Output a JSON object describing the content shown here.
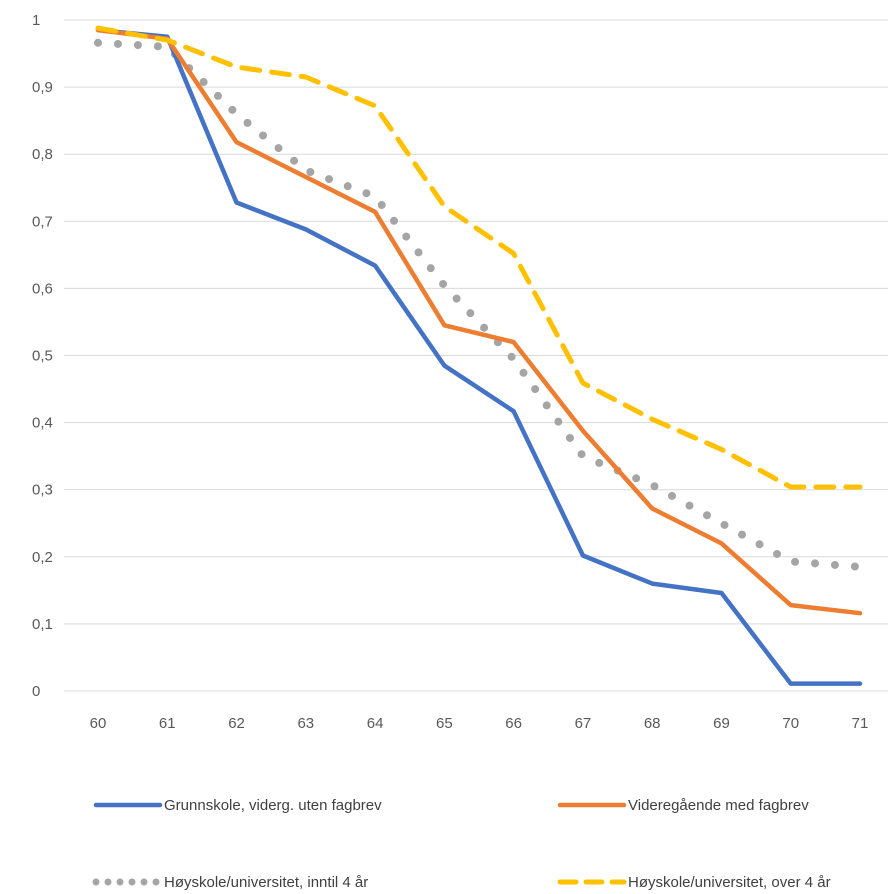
{
  "chart_data": {
    "type": "line",
    "title": "",
    "xlabel": "",
    "ylabel": "",
    "x": [
      60,
      61,
      62,
      63,
      64,
      65,
      66,
      67,
      68,
      69,
      70,
      71
    ],
    "x_tick_labels": [
      "60",
      "61",
      "62",
      "63",
      "64",
      "65",
      "66",
      "67",
      "68",
      "69",
      "70",
      "71"
    ],
    "y_tick_labels": [
      "0",
      "0,1",
      "0,2",
      "0,3",
      "0,4",
      "0,5",
      "0,6",
      "0,7",
      "0,8",
      "0,9",
      "1"
    ],
    "y_ticks": [
      0,
      0.1,
      0.2,
      0.3,
      0.4,
      0.5,
      0.6,
      0.7,
      0.8,
      0.9,
      1.0
    ],
    "ylim": [
      0,
      1
    ],
    "grid": "horizontal",
    "legend_position": "bottom",
    "series": [
      {
        "name": "Grunnskole, viderg. uten fagbrev",
        "color": "#4472C4",
        "style": "solid",
        "values": [
          0.985,
          0.975,
          0.728,
          0.688,
          0.634,
          0.485,
          0.417,
          0.202,
          0.16,
          0.146,
          0.011,
          0.011
        ]
      },
      {
        "name": "Videregående med fagbrev",
        "color": "#ED7D31",
        "style": "solid",
        "values": [
          0.985,
          0.972,
          0.818,
          0.766,
          0.714,
          0.545,
          0.52,
          0.388,
          0.272,
          0.22,
          0.128,
          0.116
        ]
      },
      {
        "name": "Høyskole/universitet, inntil 4 år",
        "color": "#A5A5A5",
        "style": "dotted",
        "values": [
          0.966,
          0.96,
          0.86,
          0.776,
          0.737,
          0.604,
          0.495,
          0.35,
          0.307,
          0.25,
          0.193,
          0.185
        ]
      },
      {
        "name": "Høyskole/universitet, over 4 år",
        "color": "#FFC000",
        "style": "dashed",
        "values": [
          0.988,
          0.97,
          0.93,
          0.915,
          0.872,
          0.722,
          0.652,
          0.459,
          0.405,
          0.36,
          0.304,
          0.304
        ]
      }
    ]
  }
}
